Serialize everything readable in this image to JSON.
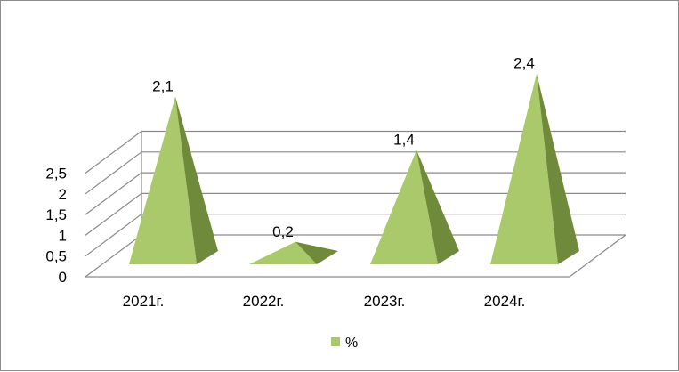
{
  "chart_data": {
    "type": "bar",
    "shape": "pyramid-3d",
    "categories": [
      "2021г.",
      "2022г.",
      "2023г.",
      "2024г."
    ],
    "series": [
      {
        "name": "%",
        "values": [
          2.1,
          0.2,
          1.4,
          2.4
        ],
        "data_labels": [
          "2,1",
          "0,2",
          "1,4",
          "2,4"
        ]
      }
    ],
    "y_ticks": [
      {
        "value": 0,
        "label": "0"
      },
      {
        "value": 0.5,
        "label": "0,5"
      },
      {
        "value": 1,
        "label": "1"
      },
      {
        "value": 1.5,
        "label": "1,5"
      },
      {
        "value": 2,
        "label": "2"
      },
      {
        "value": 2.5,
        "label": "2,5"
      }
    ],
    "ylim": [
      0,
      2.5
    ],
    "grid": true,
    "legend": "bottom",
    "colors": {
      "front": "#a9c96a",
      "side": "#6f8a3a",
      "grid": "#8a8a8a"
    }
  }
}
